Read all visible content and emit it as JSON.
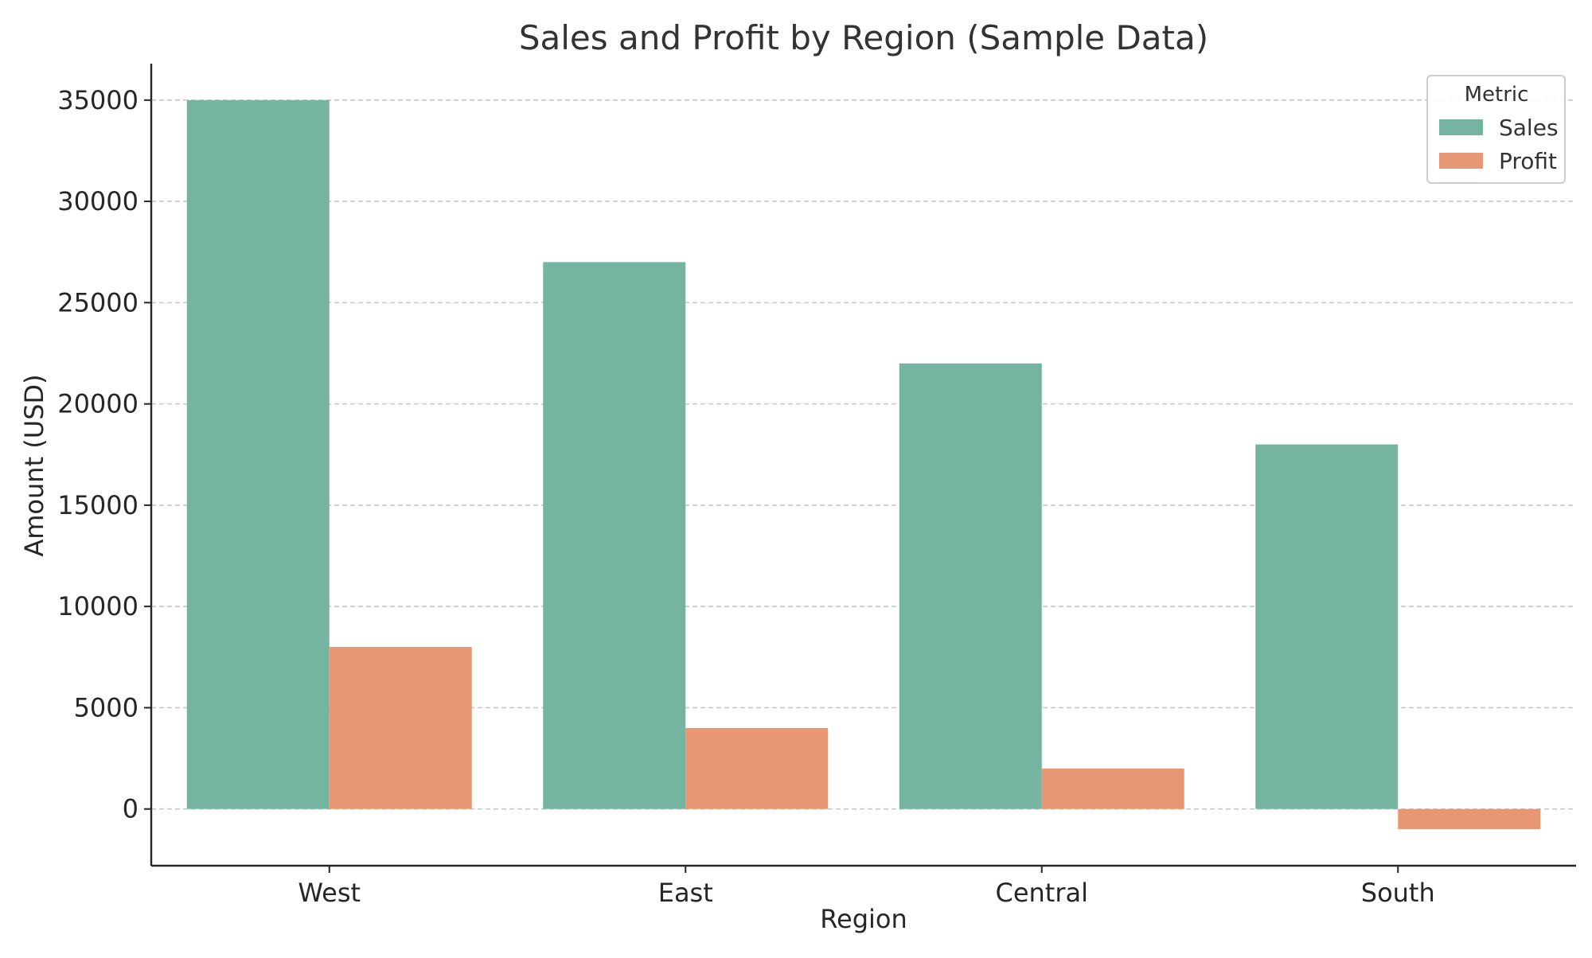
{
  "chart_data": {
    "type": "bar",
    "title": "Sales and Profit by Region (Sample Data)",
    "xlabel": "Region",
    "ylabel": "Amount (USD)",
    "categories": [
      "West",
      "East",
      "Central",
      "South"
    ],
    "series": [
      {
        "name": "Sales",
        "values": [
          35000,
          27000,
          22000,
          18000
        ],
        "color": "#74b4a0"
      },
      {
        "name": "Profit",
        "values": [
          8000,
          4000,
          2000,
          -1000
        ],
        "color": "#e89774"
      }
    ],
    "ylim": [
      -2800,
      36800
    ],
    "yticks": [
      0,
      5000,
      10000,
      15000,
      20000,
      25000,
      30000,
      35000
    ],
    "grid": "y-dashed",
    "legend": {
      "title": "Metric",
      "position": "top-right"
    }
  }
}
